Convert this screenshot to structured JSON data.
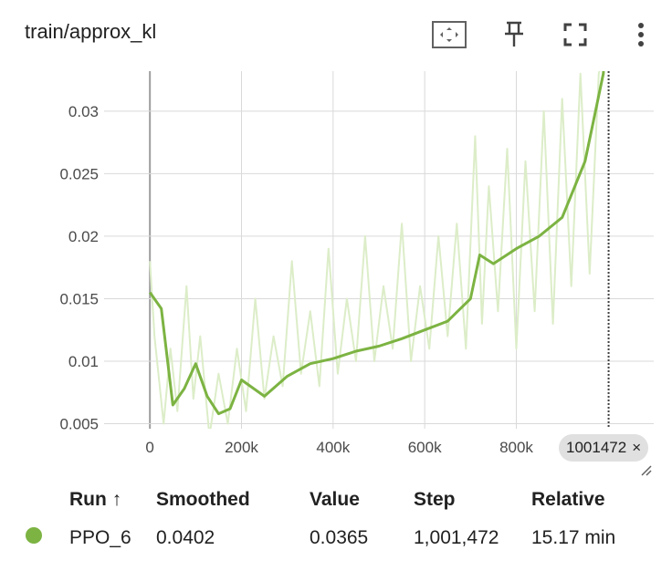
{
  "title": "train/approx_kl",
  "icons": {
    "fit_domain": "fit-to-data-icon",
    "pin": "pin-icon",
    "fullscreen": "fullscreen-icon",
    "more": "more-vert-icon"
  },
  "colors": {
    "smoothed": "#7cb342",
    "raw": "#dcedc8",
    "grid": "#d9d9d9"
  },
  "step_badge": {
    "value": "1001472",
    "close": "×"
  },
  "table": {
    "headers": {
      "run": "Run ↑",
      "smoothed": "Smoothed",
      "value": "Value",
      "step": "Step",
      "relative": "Relative"
    },
    "rows": [
      {
        "run": "PPO_6",
        "smoothed": "0.0402",
        "value": "0.0365",
        "step": "1,001,472",
        "relative": "15.17 min"
      }
    ]
  },
  "chart_data": {
    "type": "line",
    "title": "train/approx_kl",
    "xlabel": "",
    "ylabel": "",
    "x_ticks": [
      "0",
      "200k",
      "400k",
      "600k",
      "800k"
    ],
    "y_ticks": [
      "0.005",
      "0.01",
      "0.015",
      "0.02",
      "0.025",
      "0.03"
    ],
    "xlim": [
      -100000,
      1100000
    ],
    "ylim": [
      0.0046,
      0.0332
    ],
    "grid": true,
    "cursor_step": 1001472,
    "series": [
      {
        "name": "PPO_6",
        "kind": "smoothed",
        "x": [
          0,
          25000,
          50000,
          75000,
          100000,
          125000,
          150000,
          175000,
          200000,
          250000,
          300000,
          350000,
          400000,
          450000,
          500000,
          550000,
          600000,
          650000,
          700000,
          720000,
          750000,
          800000,
          850000,
          900000,
          950000,
          990000,
          1001472
        ],
        "y": [
          0.0155,
          0.0142,
          0.0065,
          0.0078,
          0.0098,
          0.0072,
          0.0058,
          0.0062,
          0.0085,
          0.0072,
          0.0088,
          0.0098,
          0.0102,
          0.0108,
          0.0112,
          0.0118,
          0.0125,
          0.0132,
          0.015,
          0.0185,
          0.0178,
          0.019,
          0.02,
          0.0215,
          0.026,
          0.033,
          0.0402
        ]
      },
      {
        "name": "PPO_6",
        "kind": "raw",
        "x": [
          0,
          10000,
          30000,
          45000,
          60000,
          80000,
          95000,
          110000,
          130000,
          150000,
          170000,
          190000,
          210000,
          230000,
          250000,
          270000,
          290000,
          310000,
          330000,
          350000,
          370000,
          390000,
          410000,
          430000,
          450000,
          470000,
          490000,
          510000,
          530000,
          550000,
          570000,
          590000,
          610000,
          630000,
          650000,
          670000,
          690000,
          710000,
          725000,
          740000,
          760000,
          780000,
          800000,
          820000,
          840000,
          860000,
          880000,
          900000,
          920000,
          940000,
          960000,
          980000,
          1001472
        ],
        "y": [
          0.018,
          0.012,
          0.005,
          0.011,
          0.006,
          0.016,
          0.007,
          0.012,
          0.004,
          0.009,
          0.005,
          0.011,
          0.006,
          0.015,
          0.007,
          0.012,
          0.008,
          0.018,
          0.009,
          0.014,
          0.008,
          0.019,
          0.009,
          0.015,
          0.01,
          0.02,
          0.01,
          0.016,
          0.011,
          0.021,
          0.01,
          0.016,
          0.011,
          0.02,
          0.012,
          0.021,
          0.011,
          0.028,
          0.013,
          0.024,
          0.014,
          0.027,
          0.011,
          0.026,
          0.014,
          0.03,
          0.013,
          0.031,
          0.016,
          0.033,
          0.017,
          0.033,
          0.0365
        ]
      }
    ]
  }
}
